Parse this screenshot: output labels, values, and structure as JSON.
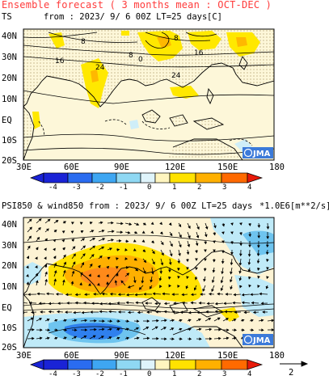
{
  "header": {
    "title": "Ensemble forecast ( 3 months mean : OCT-DEC )"
  },
  "panels": [
    {
      "var": "TS",
      "info": "from : 2023/ 9/ 6 00Z LT=25 days",
      "unit": "[C]",
      "lat_labels": [
        "40N",
        "30N",
        "20N",
        "10N",
        "EQ",
        "10S",
        "20S"
      ],
      "lon_labels": [
        "30E",
        "60E",
        "90E",
        "120E",
        "150E",
        "180"
      ],
      "contour_labels": [
        "8",
        "16",
        "24",
        "8",
        "0",
        "8",
        "16",
        "24"
      ],
      "colorbar": {
        "labels": [
          "-4",
          "-3",
          "-2",
          "-1",
          "0",
          "1",
          "2",
          "3",
          "4"
        ],
        "colors": [
          "#1a23d6",
          "#2a6cf0",
          "#3ea6f2",
          "#8fd8f3",
          "#dff4fb",
          "#fff5bf",
          "#ffe200",
          "#ffb000",
          "#ff6a00",
          "#e81a0a"
        ]
      },
      "logo": "JMA"
    },
    {
      "var": "PSI850 & wind850",
      "info": "from : 2023/ 9/ 6 00Z LT=25 days",
      "unit": "*1.0E6[m**2/s]",
      "lat_labels": [
        "40N",
        "30N",
        "20N",
        "10N",
        "EQ",
        "10S",
        "20S"
      ],
      "lon_labels": [
        "30E",
        "60E",
        "90E",
        "120E",
        "150E",
        "180"
      ],
      "colorbar": {
        "labels": [
          "-4",
          "-3",
          "-2",
          "-1",
          "0",
          "1",
          "2",
          "3",
          "4"
        ],
        "colors": [
          "#1a23d6",
          "#2a6cf0",
          "#3ea6f2",
          "#8fd8f3",
          "#dff4fb",
          "#fff5bf",
          "#ffe200",
          "#ffb000",
          "#ff6a00",
          "#e81a0a"
        ]
      },
      "logo": "JMA",
      "vector_ref": "2"
    }
  ]
}
